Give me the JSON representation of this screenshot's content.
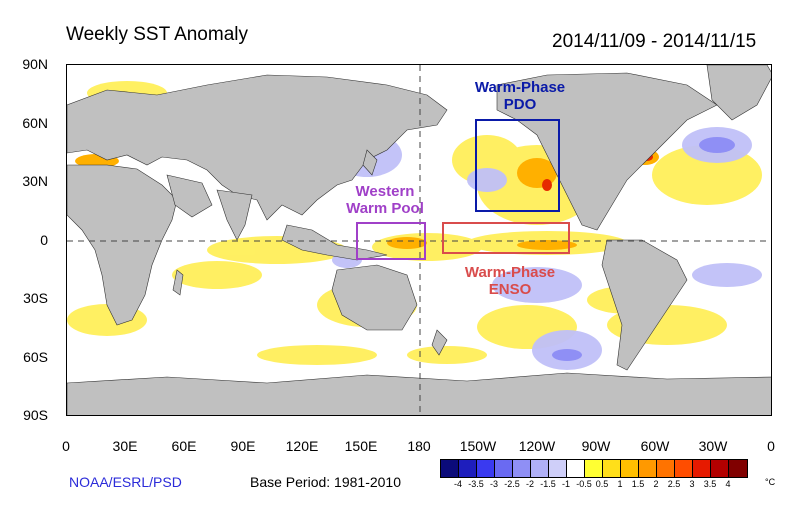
{
  "title": "Weekly SST Anomaly",
  "date_range": "2014/11/09 - 2014/11/15",
  "lat_labels": [
    "90N",
    "60N",
    "30N",
    "0",
    "30S",
    "60S",
    "90S"
  ],
  "lon_labels": [
    "0",
    "30E",
    "60E",
    "90E",
    "120E",
    "150E",
    "180",
    "150W",
    "120W",
    "90W",
    "60W",
    "30W",
    "0"
  ],
  "footer": {
    "source": "NOAA/ESRL/PSD",
    "base_period": "Base Period: 1981-2010"
  },
  "colorbar": {
    "colors": [
      "#0b0b7a",
      "#1e1ebd",
      "#3a3af0",
      "#6a6af2",
      "#8f8ff5",
      "#b0b0f7",
      "#cfcff9",
      "#ffffff",
      "#ffff33",
      "#ffdf1a",
      "#ffbf00",
      "#ff9900",
      "#ff7300",
      "#ff4d00",
      "#e61a00",
      "#b30000",
      "#800000"
    ],
    "ticks": [
      "-4",
      "-3.5",
      "-3",
      "-2.5",
      "-2",
      "-1.5",
      "-1",
      "-0.5",
      "0.5",
      "1",
      "1.5",
      "2",
      "2.5",
      "3",
      "3.5",
      "4"
    ],
    "unit": "°C"
  },
  "regions": {
    "pdo": {
      "label_line1": "Warm-Phase",
      "label_line2": "PDO",
      "color": "#0a1aa8"
    },
    "western_pool": {
      "label_line1": "Western",
      "label_line2": "Warm Pool",
      "color": "#a040c8"
    },
    "enso": {
      "label_line1": "Warm-Phase",
      "label_line2": "ENSO",
      "color": "#d94c4c"
    }
  },
  "colors": {
    "land": "#c0c0c0",
    "warm": "#ffdf1a",
    "cool": "#b0b0f7"
  }
}
